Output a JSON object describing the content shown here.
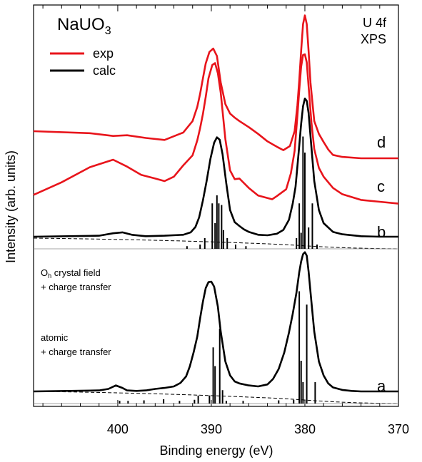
{
  "chart_data": {
    "type": "line",
    "title": "NaUO",
    "title_sub": "3",
    "corner_label_line1": "U 4f",
    "corner_label_line2": "XPS",
    "xlabel": "Binding energy (eV)",
    "ylabel": "Intensity (arb. units)",
    "xlim": [
      409,
      370
    ],
    "x_reversed": true,
    "xticks": [
      400,
      390,
      380,
      370
    ],
    "xtick_labels": [
      "400",
      "390",
      "380",
      "370"
    ],
    "y_ticks": "none",
    "grid": false,
    "legend": {
      "placement": "top-left",
      "entries": [
        {
          "label": "exp",
          "color": "#e8141b"
        },
        {
          "label": "calc",
          "color": "#000000"
        }
      ]
    },
    "annotations": {
      "crystal_field_line1_main": "O",
      "crystal_field_line1_sub": "h",
      "crystal_field_line1_rest": " crystal field",
      "crystal_field_line2": "+ charge transfer",
      "atomic_line1": "atomic",
      "atomic_line2": "+ charge transfer"
    },
    "series": [
      {
        "name": "d",
        "kind": "exp",
        "color": "#e8141b",
        "x": [
          409,
          403,
          400.5,
          399,
          397,
          395,
          393,
          392,
          391.5,
          391.2,
          390.9,
          390.6,
          390.2,
          389.8,
          389.4,
          389,
          388.5,
          388,
          387.5,
          387,
          386,
          385,
          384,
          383,
          382.3,
          381.6,
          381.1,
          380.8,
          380.6,
          380.4,
          380.2,
          380,
          379.8,
          379.6,
          379.4,
          379,
          378.5,
          378,
          377.5,
          377,
          376,
          374,
          370
        ],
        "y": [
          0.4,
          0.37,
          0.33,
          0.34,
          0.3,
          0.27,
          0.38,
          0.55,
          0.76,
          0.95,
          1.18,
          1.4,
          1.57,
          1.62,
          1.51,
          1.12,
          0.8,
          0.66,
          0.6,
          0.55,
          0.46,
          0.36,
          0.25,
          0.17,
          0.12,
          0.18,
          0.4,
          0.78,
          1.15,
          1.58,
          1.98,
          2.11,
          1.98,
          1.58,
          1.12,
          0.55,
          0.36,
          0.24,
          0.13,
          0.05,
          0.02,
          0.0,
          0.0
        ]
      },
      {
        "name": "c",
        "kind": "exp",
        "color": "#e8141b",
        "x": [
          409,
          406,
          403,
          400.5,
          399,
          397.5,
          396,
          395,
          394,
          393,
          392,
          391.5,
          391.2,
          390.9,
          390.6,
          390.3,
          389.9,
          389.6,
          389.3,
          389,
          388.5,
          388,
          387.5,
          387,
          386,
          385,
          384,
          383.5,
          383,
          382,
          381.5,
          381.1,
          380.8,
          380.6,
          380.4,
          380.2,
          380,
          379.8,
          379.6,
          379.3,
          379,
          378.5,
          378,
          377,
          376,
          374,
          372,
          370
        ],
        "y": [
          0.11,
          0.31,
          0.55,
          0.67,
          0.56,
          0.43,
          0.37,
          0.33,
          0.4,
          0.58,
          0.74,
          0.98,
          1.17,
          1.4,
          1.67,
          1.97,
          2.18,
          2.21,
          2.05,
          1.74,
          1.0,
          0.5,
          0.36,
          0.37,
          0.22,
          0.1,
          0.06,
          0.04,
          0.09,
          0.2,
          0.45,
          0.81,
          1.37,
          1.78,
          2.15,
          2.34,
          2.35,
          2.22,
          1.84,
          1.27,
          0.84,
          0.54,
          0.4,
          0.22,
          0.12,
          0.03,
          0.0,
          -0.03
        ]
      },
      {
        "name": "b",
        "kind": "calc",
        "color": "#000000",
        "x": [
          409,
          402,
          400.5,
          399.5,
          398.5,
          397,
          395,
          393,
          392.2,
          391.7,
          391.3,
          390.9,
          390.5,
          390.1,
          389.7,
          389.4,
          389.1,
          388.8,
          388.4,
          388,
          387.5,
          387,
          386.5,
          386,
          385,
          384,
          383,
          382.3,
          381.7,
          381.3,
          381,
          380.8,
          380.6,
          380.4,
          380.2,
          380,
          379.8,
          379.6,
          379.3,
          379,
          378.5,
          378,
          377,
          376,
          374,
          372,
          370
        ],
        "y": [
          0.0,
          0.02,
          0.07,
          0.09,
          0.04,
          0.01,
          0.02,
          0.04,
          0.09,
          0.2,
          0.4,
          0.75,
          1.15,
          1.6,
          1.94,
          2.05,
          2.0,
          1.7,
          1.1,
          0.55,
          0.3,
          0.22,
          0.15,
          0.1,
          0.04,
          0.03,
          0.06,
          0.14,
          0.35,
          0.68,
          1.03,
          1.45,
          1.88,
          2.32,
          2.69,
          2.85,
          2.8,
          2.55,
          1.85,
          1.15,
          0.55,
          0.28,
          0.1,
          0.05,
          0.01,
          0.0,
          0.0
        ]
      },
      {
        "name": "a",
        "kind": "calc",
        "color": "#000000",
        "x": [
          409,
          402,
          401,
          400.2,
          399.5,
          399,
          398,
          397,
          396,
          395,
          394,
          393.3,
          392.7,
          392.3,
          391.9,
          391.5,
          391.2,
          390.9,
          390.6,
          390.3,
          390,
          389.7,
          389.3,
          389,
          388.5,
          388,
          387.5,
          387,
          386,
          385,
          384,
          383.4,
          382.8,
          382.2,
          381.7,
          381.3,
          380.9,
          380.6,
          380.4,
          380.2,
          380,
          379.8,
          379.6,
          379.3,
          379,
          378.5,
          378,
          377.5,
          377,
          376,
          375,
          374,
          372,
          370
        ],
        "y": [
          0.0,
          0.02,
          0.05,
          0.12,
          0.07,
          0.02,
          0.01,
          0.02,
          0.05,
          0.07,
          0.1,
          0.17,
          0.3,
          0.5,
          0.78,
          1.1,
          1.46,
          1.8,
          2.07,
          2.19,
          2.2,
          2.1,
          1.7,
          1.2,
          0.6,
          0.32,
          0.2,
          0.16,
          0.12,
          0.1,
          0.14,
          0.25,
          0.45,
          0.78,
          1.18,
          1.55,
          1.98,
          2.39,
          2.6,
          2.75,
          2.79,
          2.72,
          2.4,
          1.8,
          1.2,
          0.6,
          0.32,
          0.16,
          0.08,
          0.03,
          0.01,
          0.0,
          0.0,
          0.0
        ]
      }
    ],
    "curve_labels": [
      "d",
      "c",
      "b",
      "a"
    ],
    "sticks_b": [
      {
        "x": 392.6,
        "h": 0.05
      },
      {
        "x": 391.2,
        "h": 0.08
      },
      {
        "x": 390.7,
        "h": 0.2
      },
      {
        "x": 389.9,
        "h": 0.85
      },
      {
        "x": 389.6,
        "h": 0.48
      },
      {
        "x": 389.4,
        "h": 1.0
      },
      {
        "x": 389.2,
        "h": 0.85
      },
      {
        "x": 388.9,
        "h": 0.82
      },
      {
        "x": 388.7,
        "h": 0.35
      },
      {
        "x": 388.3,
        "h": 0.2
      },
      {
        "x": 387.4,
        "h": 0.08
      },
      {
        "x": 386.3,
        "h": 0.05
      },
      {
        "x": 380.9,
        "h": 0.2
      },
      {
        "x": 380.6,
        "h": 0.85
      },
      {
        "x": 380.4,
        "h": 0.3
      },
      {
        "x": 380.2,
        "h": 2.1
      },
      {
        "x": 380.0,
        "h": 1.8
      },
      {
        "x": 379.6,
        "h": 0.4
      },
      {
        "x": 379.2,
        "h": 0.85
      },
      {
        "x": 378.7,
        "h": 0.08
      }
    ],
    "sticks_a": [
      {
        "x": 399.8,
        "h": 0.05
      },
      {
        "x": 398.9,
        "h": 0.05
      },
      {
        "x": 397.2,
        "h": 0.06
      },
      {
        "x": 395.1,
        "h": 0.08
      },
      {
        "x": 393.4,
        "h": 0.05
      },
      {
        "x": 391.8,
        "h": 0.07
      },
      {
        "x": 391.4,
        "h": 0.15
      },
      {
        "x": 390.2,
        "h": 0.15
      },
      {
        "x": 389.8,
        "h": 1.05
      },
      {
        "x": 389.6,
        "h": 0.7
      },
      {
        "x": 389.1,
        "h": 1.4
      },
      {
        "x": 388.8,
        "h": 0.25
      },
      {
        "x": 388.4,
        "h": 0.05
      },
      {
        "x": 386.6,
        "h": 0.05
      },
      {
        "x": 382.8,
        "h": 0.06
      },
      {
        "x": 381.2,
        "h": 0.07
      },
      {
        "x": 380.6,
        "h": 2.1
      },
      {
        "x": 380.4,
        "h": 0.8
      },
      {
        "x": 380.2,
        "h": 0.4
      },
      {
        "x": 379.8,
        "h": 1.85
      },
      {
        "x": 378.9,
        "h": 0.4
      }
    ]
  }
}
